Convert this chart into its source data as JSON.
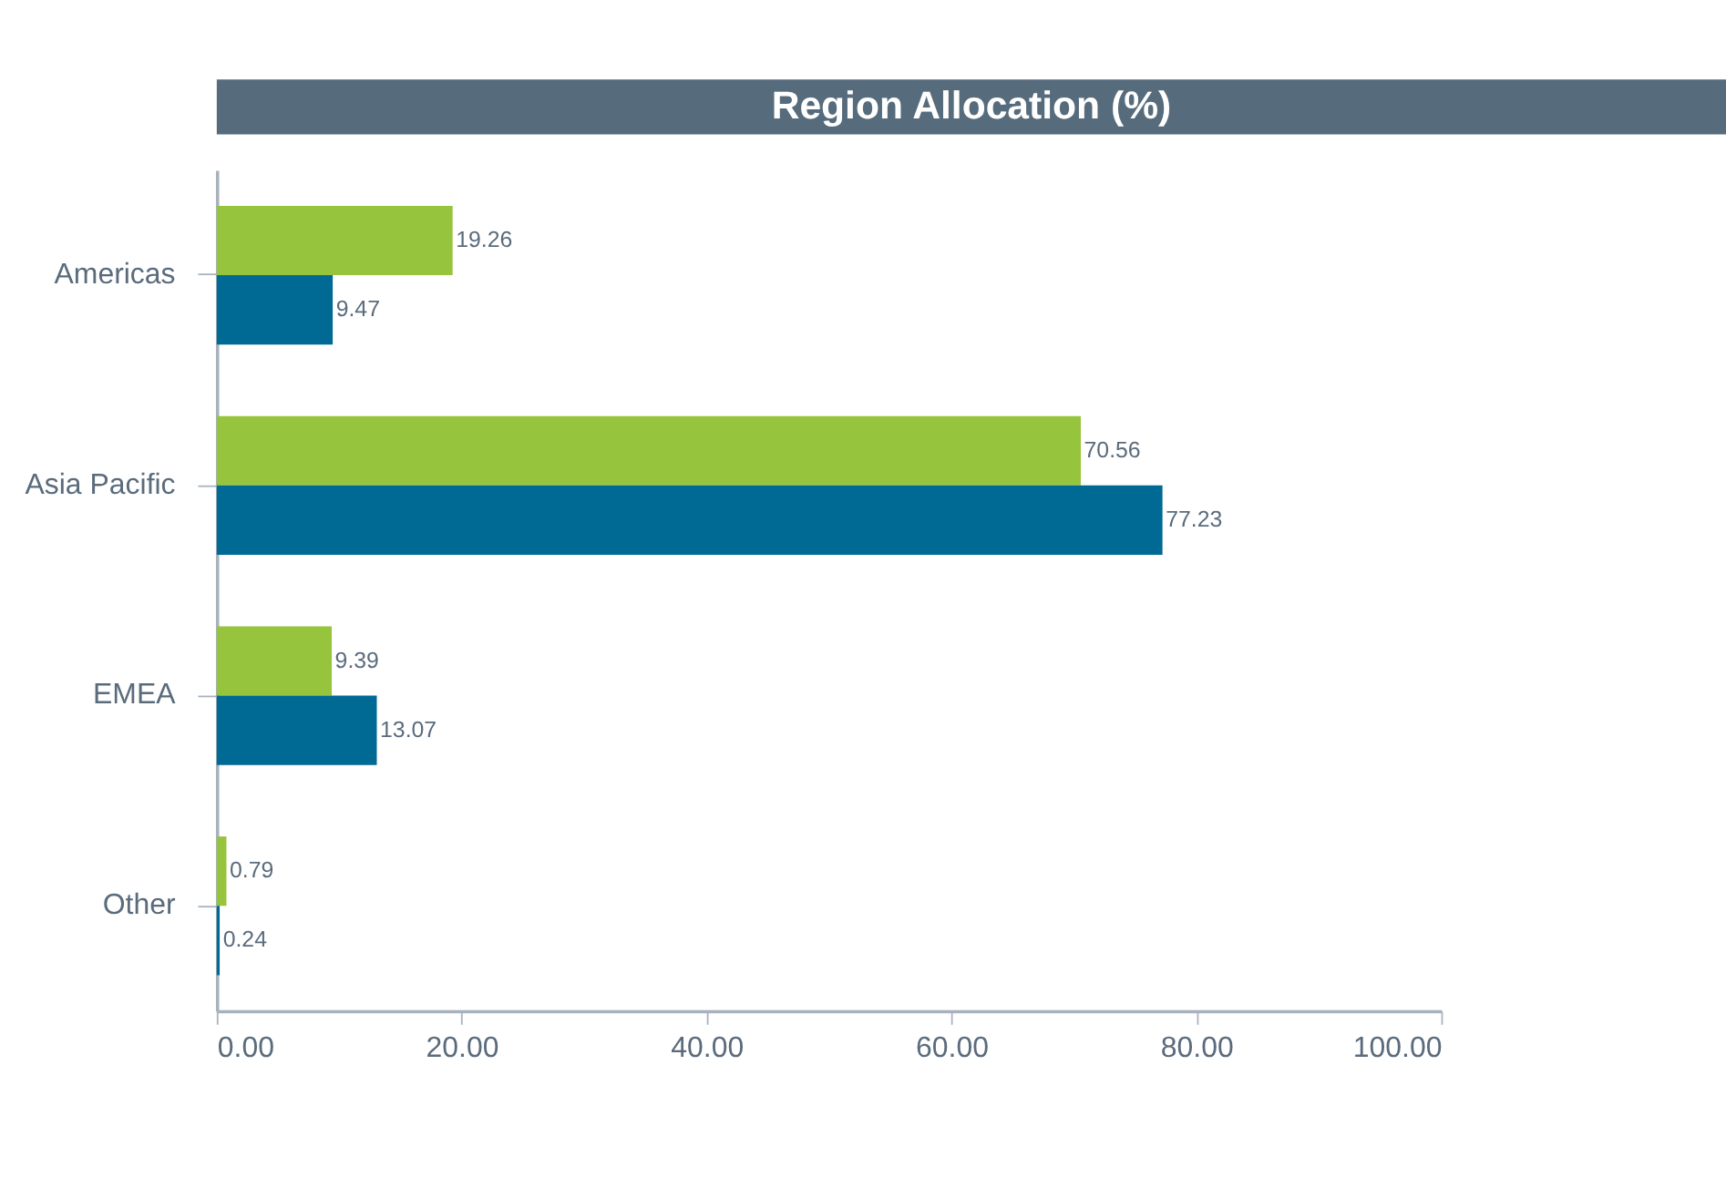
{
  "chart_data": {
    "type": "bar",
    "orientation": "horizontal",
    "title": "Region Allocation (%)",
    "categories": [
      "Americas",
      "Asia Pacific",
      "EMEA",
      "Other"
    ],
    "series": [
      {
        "color": "#97c43d",
        "values": [
          19.26,
          70.56,
          9.39,
          0.79
        ]
      },
      {
        "color": "#006a94",
        "values": [
          9.47,
          77.23,
          13.07,
          0.24
        ]
      }
    ],
    "xlim": [
      0,
      100
    ],
    "xticks": [
      {
        "value": 0,
        "label": "0.00"
      },
      {
        "value": 20,
        "label": "20.00"
      },
      {
        "value": 40,
        "label": "40.00"
      },
      {
        "value": 60,
        "label": "60.00"
      },
      {
        "value": 80,
        "label": "80.00"
      },
      {
        "value": 100,
        "label": "100.00"
      }
    ],
    "data_labels": true,
    "grid": false,
    "legend": false
  }
}
